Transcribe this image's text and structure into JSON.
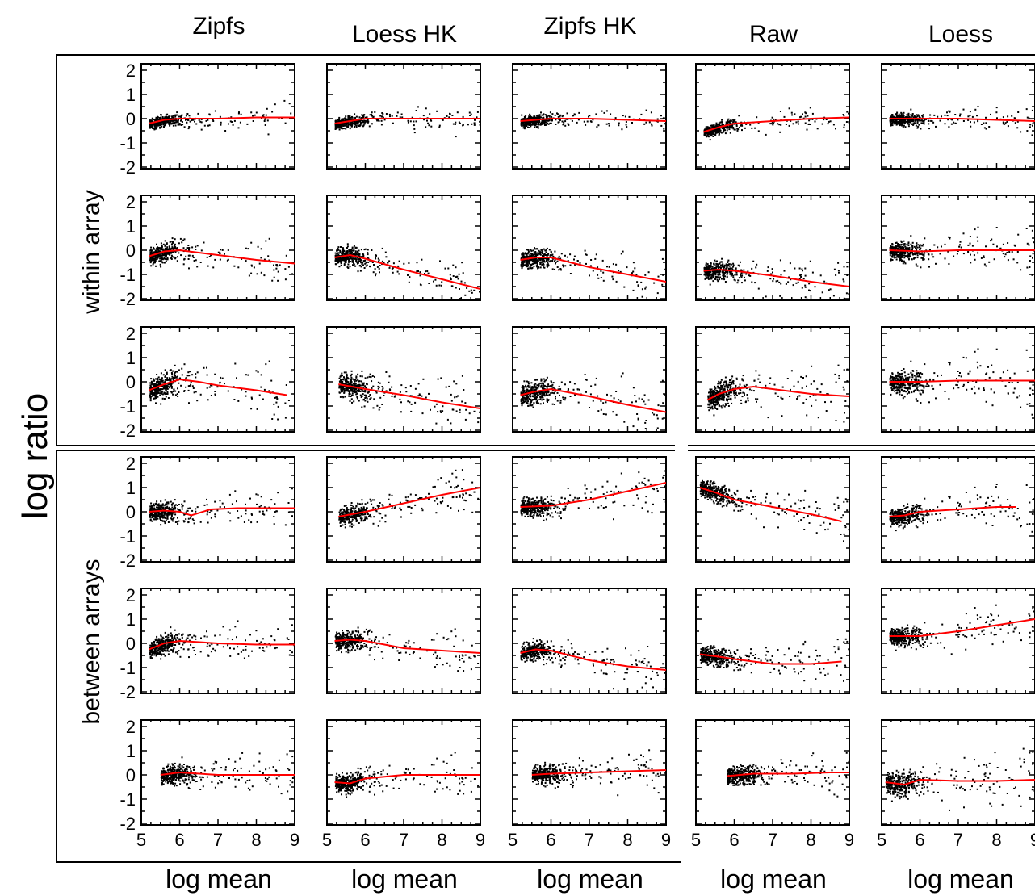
{
  "figure": {
    "ylabel": "log ratio",
    "group_labels": [
      "within array",
      "between arrays"
    ],
    "column_titles": [
      "Zipfs",
      "Loess HK",
      "Zipfs HK",
      "Raw",
      "Loess"
    ],
    "xlabel": "log mean",
    "colors": {
      "points": "#000000",
      "fit": "#ff0000",
      "frame": "#000000"
    }
  },
  "chart_data": {
    "type": "scatter",
    "layout": "small-multiples grid, 6 rows x 5 columns",
    "x_label": "log mean",
    "y_label": "log ratio",
    "xlim": [
      5,
      9
    ],
    "ylim": [
      -2,
      2
    ],
    "x_ticks": [
      5,
      6,
      7,
      8,
      9
    ],
    "y_ticks": [
      -2,
      -1,
      0,
      1,
      2
    ],
    "row_groups": [
      {
        "label": "within array",
        "rows": [
          0,
          1,
          2
        ]
      },
      {
        "label": "between arrays",
        "rows": [
          3,
          4,
          5
        ]
      }
    ],
    "columns": [
      "Zipfs",
      "Loess HK",
      "Zipfs HK",
      "Raw",
      "Loess"
    ],
    "series_style": {
      "points": "black dots",
      "fit": "red loess line"
    },
    "panels": [
      {
        "row": 0,
        "col": "Zipfs",
        "fit": [
          [
            5.2,
            -0.2
          ],
          [
            5.6,
            -0.05
          ],
          [
            6.0,
            0.0
          ],
          [
            7.0,
            0.0
          ],
          [
            8.0,
            0.05
          ],
          [
            9.0,
            0.05
          ]
        ],
        "spread": "narrow"
      },
      {
        "row": 0,
        "col": "Loess HK",
        "fit": [
          [
            5.2,
            -0.2
          ],
          [
            5.6,
            -0.1
          ],
          [
            6.0,
            0.0
          ],
          [
            7.0,
            0.0
          ],
          [
            8.0,
            0.0
          ],
          [
            9.0,
            0.0
          ]
        ],
        "spread": "narrow"
      },
      {
        "row": 0,
        "col": "Zipfs HK",
        "fit": [
          [
            5.2,
            -0.1
          ],
          [
            6.0,
            0.0
          ],
          [
            7.0,
            0.0
          ],
          [
            8.0,
            -0.05
          ],
          [
            9.0,
            -0.1
          ]
        ],
        "spread": "narrow"
      },
      {
        "row": 0,
        "col": "Raw",
        "fit": [
          [
            5.2,
            -0.55
          ],
          [
            5.6,
            -0.35
          ],
          [
            6.0,
            -0.2
          ],
          [
            7.0,
            -0.1
          ],
          [
            8.0,
            0.0
          ],
          [
            9.0,
            0.05
          ]
        ],
        "spread": "narrow"
      },
      {
        "row": 0,
        "col": "Loess",
        "fit": [
          [
            5.2,
            0.0
          ],
          [
            6.0,
            0.0
          ],
          [
            7.0,
            0.0
          ],
          [
            8.0,
            -0.05
          ],
          [
            9.0,
            -0.1
          ]
        ],
        "spread": "narrow"
      },
      {
        "row": 1,
        "col": "Zipfs",
        "fit": [
          [
            5.2,
            -0.25
          ],
          [
            5.6,
            -0.05
          ],
          [
            6.0,
            0.0
          ],
          [
            7.0,
            -0.2
          ],
          [
            8.0,
            -0.4
          ],
          [
            9.0,
            -0.55
          ]
        ],
        "spread": "medium"
      },
      {
        "row": 1,
        "col": "Loess HK",
        "fit": [
          [
            5.2,
            -0.3
          ],
          [
            5.6,
            -0.2
          ],
          [
            6.0,
            -0.35
          ],
          [
            7.0,
            -0.8
          ],
          [
            8.0,
            -1.2
          ],
          [
            9.0,
            -1.6
          ]
        ],
        "spread": "medium"
      },
      {
        "row": 1,
        "col": "Zipfs HK",
        "fit": [
          [
            5.2,
            -0.4
          ],
          [
            5.6,
            -0.3
          ],
          [
            6.0,
            -0.3
          ],
          [
            7.0,
            -0.7
          ],
          [
            8.0,
            -1.0
          ],
          [
            9.0,
            -1.3
          ]
        ],
        "spread": "medium"
      },
      {
        "row": 1,
        "col": "Raw",
        "fit": [
          [
            5.2,
            -0.85
          ],
          [
            5.6,
            -0.8
          ],
          [
            6.0,
            -0.85
          ],
          [
            7.0,
            -1.05
          ],
          [
            8.0,
            -1.3
          ],
          [
            9.0,
            -1.5
          ]
        ],
        "spread": "medium"
      },
      {
        "row": 1,
        "col": "Loess",
        "fit": [
          [
            5.2,
            0.0
          ],
          [
            6.0,
            -0.05
          ],
          [
            7.0,
            0.0
          ],
          [
            8.0,
            0.0
          ],
          [
            9.0,
            0.0
          ]
        ],
        "spread": "medium"
      },
      {
        "row": 2,
        "col": "Zipfs",
        "fit": [
          [
            5.2,
            -0.35
          ],
          [
            5.6,
            -0.1
          ],
          [
            6.0,
            0.1
          ],
          [
            6.5,
            0.0
          ],
          [
            7.0,
            -0.15
          ],
          [
            8.0,
            -0.35
          ],
          [
            8.8,
            -0.55
          ]
        ],
        "spread": "wide"
      },
      {
        "row": 2,
        "col": "Loess HK",
        "fit": [
          [
            5.3,
            -0.1
          ],
          [
            6.0,
            -0.3
          ],
          [
            7.0,
            -0.55
          ],
          [
            8.0,
            -0.85
          ],
          [
            9.0,
            -1.1
          ]
        ],
        "spread": "wide"
      },
      {
        "row": 2,
        "col": "Zipfs HK",
        "fit": [
          [
            5.2,
            -0.55
          ],
          [
            5.6,
            -0.4
          ],
          [
            6.0,
            -0.3
          ],
          [
            7.0,
            -0.6
          ],
          [
            8.0,
            -0.95
          ],
          [
            9.0,
            -1.25
          ]
        ],
        "spread": "wide"
      },
      {
        "row": 2,
        "col": "Raw",
        "fit": [
          [
            5.3,
            -0.75
          ],
          [
            5.6,
            -0.5
          ],
          [
            6.0,
            -0.3
          ],
          [
            6.5,
            -0.2
          ],
          [
            7.0,
            -0.3
          ],
          [
            8.0,
            -0.5
          ],
          [
            9.0,
            -0.6
          ]
        ],
        "spread": "wide"
      },
      {
        "row": 2,
        "col": "Loess",
        "fit": [
          [
            5.2,
            0.0
          ],
          [
            6.0,
            0.0
          ],
          [
            7.0,
            0.05
          ],
          [
            8.0,
            0.05
          ],
          [
            9.0,
            0.05
          ]
        ],
        "spread": "wide"
      },
      {
        "row": 3,
        "col": "Zipfs",
        "fit": [
          [
            5.2,
            0.0
          ],
          [
            5.6,
            0.05
          ],
          [
            6.0,
            0.0
          ],
          [
            6.3,
            -0.15
          ],
          [
            6.8,
            0.1
          ],
          [
            7.5,
            0.15
          ],
          [
            9.0,
            0.15
          ]
        ],
        "spread": "medium"
      },
      {
        "row": 3,
        "col": "Loess HK",
        "fit": [
          [
            5.3,
            -0.2
          ],
          [
            6.0,
            0.0
          ],
          [
            7.0,
            0.35
          ],
          [
            8.0,
            0.7
          ],
          [
            9.0,
            1.0
          ]
        ],
        "spread": "medium"
      },
      {
        "row": 3,
        "col": "Zipfs HK",
        "fit": [
          [
            5.2,
            0.2
          ],
          [
            6.0,
            0.25
          ],
          [
            7.0,
            0.5
          ],
          [
            8.0,
            0.85
          ],
          [
            9.0,
            1.2
          ]
        ],
        "spread": "medium"
      },
      {
        "row": 3,
        "col": "Raw",
        "fit": [
          [
            5.1,
            1.0
          ],
          [
            5.5,
            0.8
          ],
          [
            6.0,
            0.5
          ],
          [
            7.0,
            0.2
          ],
          [
            8.0,
            -0.1
          ],
          [
            8.8,
            -0.4
          ]
        ],
        "spread": "medium"
      },
      {
        "row": 3,
        "col": "Loess",
        "fit": [
          [
            5.2,
            -0.2
          ],
          [
            5.6,
            -0.15
          ],
          [
            6.0,
            0.0
          ],
          [
            7.0,
            0.1
          ],
          [
            8.0,
            0.2
          ],
          [
            8.5,
            0.2
          ]
        ],
        "spread": "medium"
      },
      {
        "row": 4,
        "col": "Zipfs",
        "fit": [
          [
            5.2,
            -0.25
          ],
          [
            5.6,
            0.0
          ],
          [
            6.0,
            0.1
          ],
          [
            7.0,
            0.0
          ],
          [
            8.0,
            -0.05
          ],
          [
            9.0,
            -0.05
          ]
        ],
        "spread": "medium"
      },
      {
        "row": 4,
        "col": "Loess HK",
        "fit": [
          [
            5.2,
            0.1
          ],
          [
            5.6,
            0.15
          ],
          [
            6.0,
            0.1
          ],
          [
            7.0,
            -0.2
          ],
          [
            8.0,
            -0.3
          ],
          [
            9.0,
            -0.4
          ]
        ],
        "spread": "medium"
      },
      {
        "row": 4,
        "col": "Zipfs HK",
        "fit": [
          [
            5.2,
            -0.4
          ],
          [
            5.6,
            -0.25
          ],
          [
            6.0,
            -0.3
          ],
          [
            7.0,
            -0.7
          ],
          [
            8.0,
            -0.95
          ],
          [
            9.0,
            -1.1
          ]
        ],
        "spread": "medium"
      },
      {
        "row": 4,
        "col": "Raw",
        "fit": [
          [
            5.1,
            -0.45
          ],
          [
            5.6,
            -0.55
          ],
          [
            6.0,
            -0.65
          ],
          [
            7.0,
            -0.85
          ],
          [
            8.0,
            -0.85
          ],
          [
            8.8,
            -0.75
          ]
        ],
        "spread": "medium"
      },
      {
        "row": 4,
        "col": "Loess",
        "fit": [
          [
            5.2,
            0.3
          ],
          [
            6.0,
            0.3
          ],
          [
            7.0,
            0.5
          ],
          [
            8.0,
            0.75
          ],
          [
            9.0,
            1.0
          ]
        ],
        "spread": "medium"
      },
      {
        "row": 5,
        "col": "Zipfs",
        "fit": [
          [
            5.5,
            0.0
          ],
          [
            6.0,
            0.1
          ],
          [
            7.0,
            0.0
          ],
          [
            8.0,
            0.0
          ],
          [
            9.0,
            0.0
          ]
        ],
        "spread": "medium"
      },
      {
        "row": 5,
        "col": "Loess HK",
        "fit": [
          [
            5.2,
            -0.3
          ],
          [
            5.6,
            -0.35
          ],
          [
            6.0,
            -0.15
          ],
          [
            7.0,
            0.0
          ],
          [
            8.0,
            0.0
          ],
          [
            9.0,
            0.0
          ]
        ],
        "spread": "medium"
      },
      {
        "row": 5,
        "col": "Zipfs HK",
        "fit": [
          [
            5.5,
            0.0
          ],
          [
            6.0,
            0.05
          ],
          [
            7.0,
            0.1
          ],
          [
            8.0,
            0.15
          ],
          [
            9.0,
            0.2
          ]
        ],
        "spread": "medium"
      },
      {
        "row": 5,
        "col": "Raw",
        "fit": [
          [
            5.8,
            -0.05
          ],
          [
            6.5,
            0.05
          ],
          [
            7.5,
            0.05
          ],
          [
            8.5,
            0.1
          ],
          [
            9.0,
            0.1
          ]
        ],
        "spread": "medium"
      },
      {
        "row": 5,
        "col": "Loess",
        "fit": [
          [
            5.1,
            -0.3
          ],
          [
            5.6,
            -0.4
          ],
          [
            6.0,
            -0.2
          ],
          [
            7.0,
            -0.25
          ],
          [
            8.0,
            -0.25
          ],
          [
            9.0,
            -0.2
          ]
        ],
        "spread": "wide"
      }
    ]
  }
}
